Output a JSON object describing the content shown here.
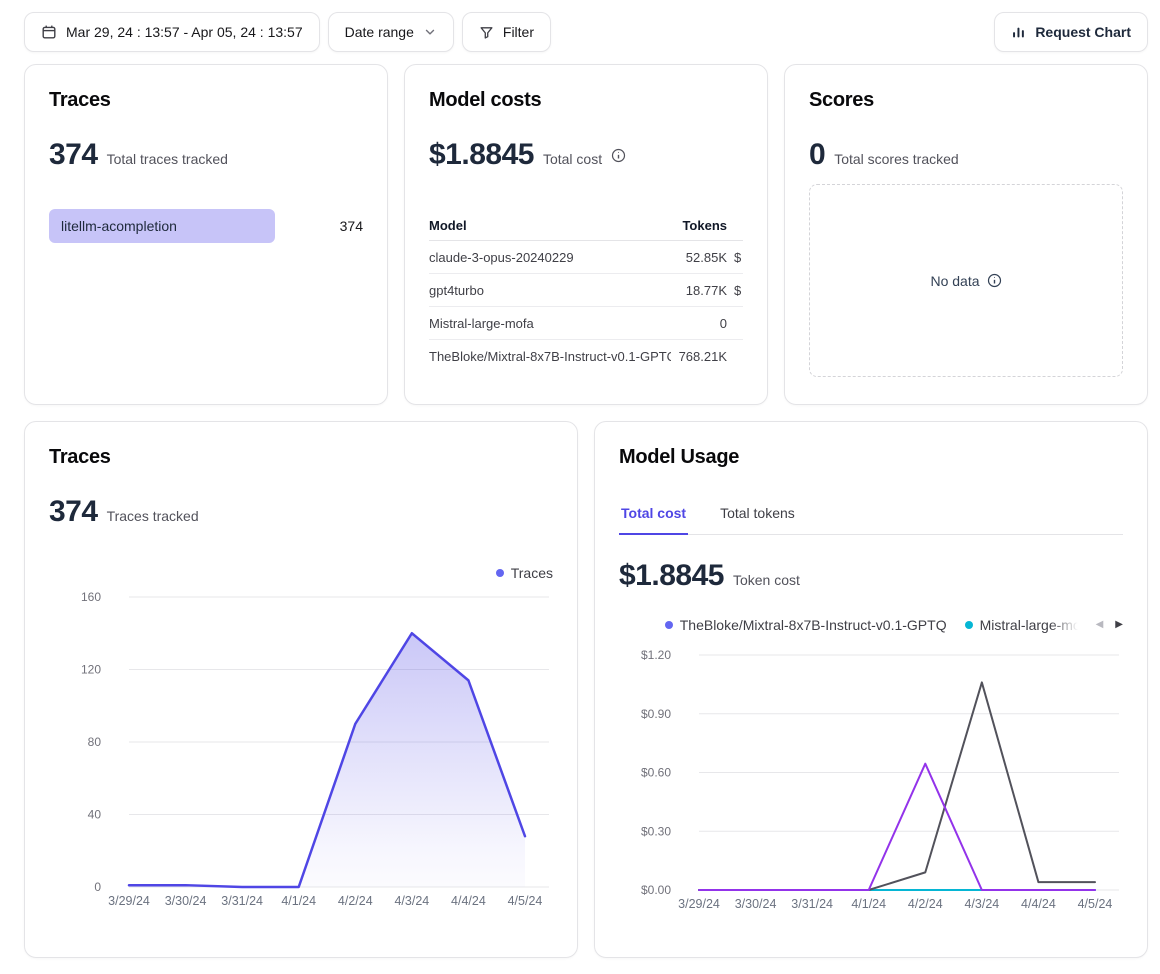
{
  "toolbar": {
    "date_picker_value": "Mar 29, 24 : 13:57 - Apr 05, 24 : 13:57",
    "date_range_label": "Date range",
    "filter_label": "Filter",
    "request_chart_label": "Request Chart"
  },
  "summary_row": {
    "traces": {
      "title": "Traces",
      "value": "374",
      "subtitle": "Total traces tracked",
      "items": [
        {
          "label": "litellm-acompletion",
          "value": "374",
          "bar_color": "#c7c4f8"
        }
      ]
    },
    "model_costs": {
      "title": "Model costs",
      "value": "$1.8845",
      "subtitle": "Total cost",
      "table": {
        "headers": {
          "model": "Model",
          "tokens": "Tokens"
        },
        "rows": [
          {
            "model": "claude-3-opus-20240229",
            "tokens": "52.85K",
            "cost_clipped": "$"
          },
          {
            "model": "gpt4turbo",
            "tokens": "18.77K",
            "cost_clipped": "$"
          },
          {
            "model": "Mistral-large-mofa",
            "tokens": "0",
            "cost_clipped": ""
          },
          {
            "model": "TheBloke/Mixtral-8x7B-Instruct-v0.1-GPTQ",
            "tokens": "768.21K",
            "cost_clipped": ""
          }
        ]
      }
    },
    "scores": {
      "title": "Scores",
      "value": "0",
      "subtitle": "Total scores tracked",
      "empty_state": "No data"
    }
  },
  "bottom_row": {
    "traces_chart_card": {
      "title": "Traces",
      "value": "374",
      "subtitle": "Traces tracked",
      "legend": [
        {
          "label": "Traces",
          "color": "#6366f1"
        }
      ]
    },
    "model_usage_card": {
      "title": "Model Usage",
      "tabs": [
        {
          "label": "Total cost",
          "active": true
        },
        {
          "label": "Total tokens",
          "active": false
        }
      ],
      "value": "$1.8845",
      "subtitle": "Token cost",
      "legend": [
        {
          "label": "TheBloke/Mixtral-8x7B-Instruct-v0.1-GPTQ",
          "color": "#6366f1",
          "truncated": false
        },
        {
          "label": "Mistral-large-mofa",
          "color": "#06b6d4",
          "truncated": true
        }
      ]
    }
  },
  "chart_data": [
    {
      "type": "area",
      "title": "Traces",
      "x": [
        "3/29/24",
        "3/30/24",
        "3/31/24",
        "4/1/24",
        "4/2/24",
        "4/3/24",
        "4/4/24",
        "4/5/24"
      ],
      "xlabel": "",
      "ylabel": "",
      "ylim": [
        0,
        160
      ],
      "grid": "horizontal",
      "legend_position": "top-right",
      "yticks": [
        {
          "value": 0,
          "label": "0"
        },
        {
          "value": 40,
          "label": "40"
        },
        {
          "value": 80,
          "label": "80"
        },
        {
          "value": 120,
          "label": "120"
        },
        {
          "value": 160,
          "label": "160"
        }
      ],
      "series": [
        {
          "name": "Traces",
          "color": "#4f46e5",
          "stroke_width": 2.5,
          "area": true,
          "values": [
            1,
            1,
            0,
            0,
            90,
            140,
            114,
            28
          ]
        }
      ]
    },
    {
      "type": "line",
      "title": "Model Usage — Total cost",
      "x": [
        "3/29/24",
        "3/30/24",
        "3/31/24",
        "4/1/24",
        "4/2/24",
        "4/3/24",
        "4/4/24",
        "4/5/24"
      ],
      "xlabel": "",
      "ylabel": "",
      "ylim": [
        0,
        1.2
      ],
      "grid": "horizontal",
      "legend_position": "top-right",
      "yticks": [
        {
          "value": 0,
          "label": "$0.00"
        },
        {
          "value": 0.3,
          "label": "$0.30"
        },
        {
          "value": 0.6,
          "label": "$0.60"
        },
        {
          "value": 0.9,
          "label": "$0.90"
        },
        {
          "value": 1.2,
          "label": "$1.20"
        }
      ],
      "series": [
        {
          "name": "TheBloke/Mixtral-8x7B-Instruct-v0.1-GPTQ",
          "color": "#6366f1",
          "stroke_width": 2,
          "values": [
            0,
            0,
            0,
            0,
            0,
            0,
            0,
            0
          ]
        },
        {
          "name": "Mistral-large-mofa",
          "color": "#06b6d4",
          "stroke_width": 2,
          "values": [
            0,
            0,
            0,
            0,
            0,
            0,
            0,
            0
          ]
        },
        {
          "name": "",
          "color": "#52525b",
          "stroke_width": 2,
          "values": [
            0,
            0,
            0,
            0,
            0.09,
            1.06,
            0.04,
            0.04
          ]
        },
        {
          "name": "",
          "color": "#9333ea",
          "stroke_width": 2,
          "values": [
            0,
            0,
            0,
            0,
            0.645,
            0,
            0,
            0
          ]
        }
      ]
    }
  ],
  "colors": {
    "accent": "#4f46e5",
    "card_border": "#e4e4e7",
    "text_primary": "#1e293b",
    "text_secondary": "#52525b",
    "axis_label": "#71717a",
    "trace_bar_fill": "#c7c4f8"
  }
}
